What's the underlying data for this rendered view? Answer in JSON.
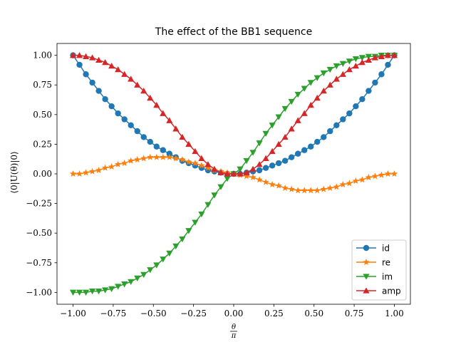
{
  "chart_data": {
    "type": "line",
    "title": "The effect of the BB1 sequence",
    "xlabel_num": "θ",
    "xlabel_den": "π",
    "ylabel": "⟨0|U(θ)|0⟩",
    "xlim": [
      -1.1,
      1.1
    ],
    "ylim": [
      -1.1,
      1.1
    ],
    "x_ticks": [
      -1.0,
      -0.75,
      -0.5,
      -0.25,
      0.0,
      0.25,
      0.5,
      0.75,
      1.0
    ],
    "x_tick_labels": [
      "−1.00",
      "−0.75",
      "−0.50",
      "−0.25",
      "0.00",
      "0.25",
      "0.50",
      "0.75",
      "1.00"
    ],
    "y_ticks": [
      -1.0,
      -0.75,
      -0.5,
      -0.25,
      0.0,
      0.25,
      0.5,
      0.75,
      1.0
    ],
    "y_tick_labels": [
      "−1.00",
      "−0.75",
      "−0.50",
      "−0.25",
      "0.00",
      "0.25",
      "0.50",
      "0.75",
      "1.00"
    ],
    "grid": false,
    "legend_position": "bottom-right",
    "x": [
      -1.0,
      -0.96,
      -0.92,
      -0.88,
      -0.84,
      -0.8,
      -0.76,
      -0.72,
      -0.68,
      -0.64,
      -0.6,
      -0.56,
      -0.52,
      -0.48,
      -0.44,
      -0.4,
      -0.36,
      -0.32,
      -0.28,
      -0.24,
      -0.2,
      -0.16,
      -0.12,
      -0.08,
      -0.04,
      0.0,
      0.04,
      0.08,
      0.12,
      0.16,
      0.2,
      0.24,
      0.28,
      0.32,
      0.36,
      0.4,
      0.44,
      0.48,
      0.52,
      0.56,
      0.6,
      0.64,
      0.68,
      0.72,
      0.76,
      0.8,
      0.84,
      0.88,
      0.92,
      0.96,
      1.0
    ],
    "series": [
      {
        "name": "id",
        "color": "#1f77b4",
        "marker": "circle",
        "values": [
          1.0,
          0.92,
          0.84,
          0.77,
          0.7,
          0.63,
          0.57,
          0.51,
          0.46,
          0.41,
          0.36,
          0.31,
          0.27,
          0.23,
          0.2,
          0.17,
          0.14,
          0.11,
          0.09,
          0.07,
          0.05,
          0.03,
          0.02,
          0.01,
          0.0,
          0.0,
          0.0,
          0.01,
          0.02,
          0.03,
          0.05,
          0.07,
          0.09,
          0.11,
          0.14,
          0.17,
          0.2,
          0.23,
          0.27,
          0.31,
          0.36,
          0.41,
          0.46,
          0.51,
          0.57,
          0.63,
          0.7,
          0.77,
          0.84,
          0.92,
          1.0
        ]
      },
      {
        "name": "re",
        "color": "#ff7f0e",
        "marker": "star",
        "values": [
          0.0,
          0.0,
          0.01,
          0.02,
          0.03,
          0.05,
          0.06,
          0.08,
          0.09,
          0.11,
          0.12,
          0.13,
          0.14,
          0.14,
          0.14,
          0.14,
          0.13,
          0.12,
          0.1,
          0.09,
          0.07,
          0.05,
          0.03,
          0.02,
          0.01,
          0.0,
          -0.01,
          -0.02,
          -0.03,
          -0.05,
          -0.07,
          -0.09,
          -0.1,
          -0.12,
          -0.13,
          -0.14,
          -0.14,
          -0.14,
          -0.14,
          -0.13,
          -0.12,
          -0.11,
          -0.09,
          -0.08,
          -0.06,
          -0.05,
          -0.03,
          -0.02,
          -0.01,
          0.0,
          0.0
        ]
      },
      {
        "name": "im",
        "color": "#2ca02c",
        "marker": "triangle-down",
        "values": [
          -1.0,
          -1.0,
          -1.0,
          -0.99,
          -0.99,
          -0.98,
          -0.97,
          -0.95,
          -0.93,
          -0.91,
          -0.88,
          -0.85,
          -0.81,
          -0.77,
          -0.72,
          -0.67,
          -0.61,
          -0.55,
          -0.48,
          -0.41,
          -0.34,
          -0.26,
          -0.18,
          -0.11,
          -0.04,
          0.0,
          0.04,
          0.11,
          0.18,
          0.26,
          0.34,
          0.41,
          0.48,
          0.55,
          0.61,
          0.67,
          0.72,
          0.77,
          0.81,
          0.85,
          0.88,
          0.91,
          0.93,
          0.95,
          0.97,
          0.98,
          0.99,
          0.99,
          1.0,
          1.0,
          1.0
        ]
      },
      {
        "name": "amp",
        "color": "#d62728",
        "marker": "triangle-up",
        "values": [
          1.0,
          1.0,
          0.99,
          0.98,
          0.96,
          0.94,
          0.91,
          0.88,
          0.84,
          0.8,
          0.75,
          0.7,
          0.64,
          0.58,
          0.51,
          0.45,
          0.38,
          0.31,
          0.25,
          0.19,
          0.13,
          0.08,
          0.04,
          0.01,
          0.0,
          0.0,
          0.0,
          0.01,
          0.04,
          0.08,
          0.13,
          0.19,
          0.25,
          0.31,
          0.38,
          0.45,
          0.51,
          0.58,
          0.64,
          0.7,
          0.75,
          0.8,
          0.84,
          0.88,
          0.91,
          0.94,
          0.96,
          0.98,
          0.99,
          1.0,
          1.0
        ]
      }
    ]
  }
}
